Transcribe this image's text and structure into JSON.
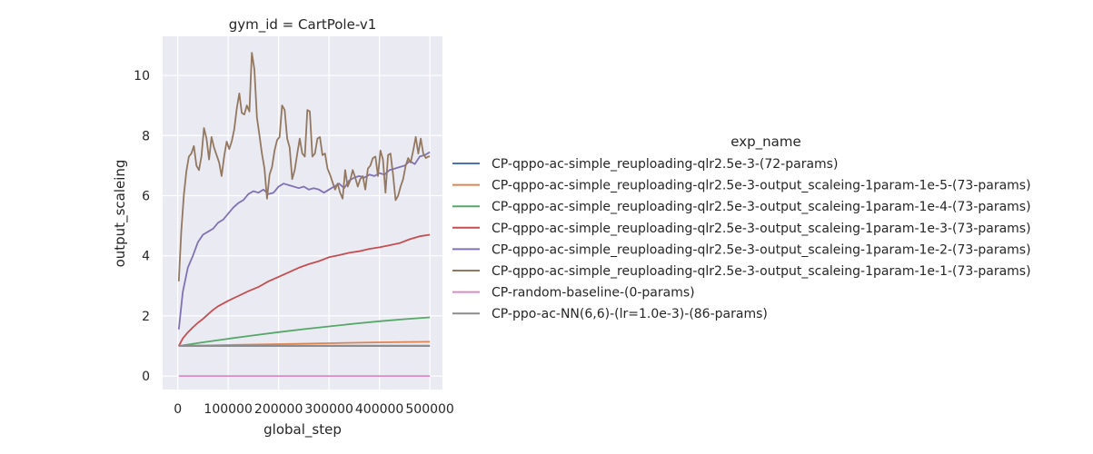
{
  "chart_data": {
    "type": "line",
    "title": "gym_id = CartPole-v1",
    "xlabel": "global_step",
    "ylabel": "output_scaleing",
    "xlim": [
      -30000,
      525000
    ],
    "ylim": [
      -0.45,
      11.3
    ],
    "xticks": [
      0,
      100000,
      200000,
      300000,
      400000,
      500000
    ],
    "xtick_labels": [
      "0",
      "100000",
      "200000",
      "300000",
      "400000",
      "500000"
    ],
    "yticks": [
      0,
      2,
      4,
      6,
      8,
      10
    ],
    "ytick_labels": [
      "0",
      "2",
      "4",
      "6",
      "8",
      "10"
    ],
    "grid": true,
    "legend": {
      "title": "exp_name",
      "placement": "right"
    },
    "series": [
      {
        "name": "CP-qppo-ac-simple_reuploading-qlr2.5e-3-(72-params)",
        "color": "#4c72b0",
        "x": [
          2048,
          500000
        ],
        "y": [
          1.0,
          1.0
        ]
      },
      {
        "name": "CP-qppo-ac-simple_reuploading-qlr2.5e-3-output_scaleing-1param-1e-5-(73-params)",
        "color": "#dd8452",
        "x": [
          2048,
          100000,
          200000,
          300000,
          400000,
          500000
        ],
        "y": [
          1.0,
          1.03,
          1.06,
          1.09,
          1.12,
          1.14
        ]
      },
      {
        "name": "CP-qppo-ac-simple_reuploading-qlr2.5e-3-output_scaleing-1param-1e-4-(73-params)",
        "color": "#55a868",
        "x": [
          2048,
          50000,
          100000,
          150000,
          200000,
          250000,
          300000,
          350000,
          400000,
          450000,
          500000
        ],
        "y": [
          1.0,
          1.12,
          1.24,
          1.35,
          1.46,
          1.56,
          1.65,
          1.74,
          1.82,
          1.89,
          1.95
        ]
      },
      {
        "name": "CP-qppo-ac-simple_reuploading-qlr2.5e-3-output_scaleing-1param-1e-3-(73-params)",
        "color": "#c44e52",
        "x": [
          2048,
          10000,
          20000,
          30000,
          40000,
          50000,
          60000,
          70000,
          80000,
          100000,
          120000,
          140000,
          160000,
          180000,
          200000,
          220000,
          240000,
          260000,
          280000,
          300000,
          320000,
          340000,
          360000,
          380000,
          400000,
          420000,
          440000,
          460000,
          480000,
          500000
        ],
        "y": [
          1.0,
          1.25,
          1.45,
          1.62,
          1.77,
          1.9,
          2.05,
          2.2,
          2.32,
          2.5,
          2.66,
          2.82,
          2.96,
          3.15,
          3.3,
          3.45,
          3.6,
          3.72,
          3.82,
          3.95,
          4.02,
          4.1,
          4.15,
          4.23,
          4.28,
          4.35,
          4.42,
          4.55,
          4.65,
          4.7
        ]
      },
      {
        "name": "CP-qppo-ac-simple_reuploading-qlr2.5e-3-output_scaleing-1param-1e-2-(73-params)",
        "color": "#8172b3",
        "x": [
          2048,
          10000,
          20000,
          30000,
          40000,
          50000,
          60000,
          70000,
          80000,
          90000,
          100000,
          110000,
          120000,
          130000,
          140000,
          150000,
          160000,
          170000,
          180000,
          190000,
          200000,
          210000,
          220000,
          230000,
          240000,
          250000,
          260000,
          270000,
          280000,
          290000,
          300000,
          310000,
          320000,
          330000,
          340000,
          350000,
          360000,
          370000,
          380000,
          390000,
          400000,
          410000,
          420000,
          430000,
          440000,
          450000,
          460000,
          470000,
          480000,
          490000,
          500000
        ],
        "y": [
          1.55,
          2.8,
          3.6,
          4.0,
          4.45,
          4.7,
          4.8,
          4.9,
          5.1,
          5.2,
          5.4,
          5.6,
          5.75,
          5.85,
          6.05,
          6.15,
          6.1,
          6.2,
          6.05,
          6.1,
          6.3,
          6.4,
          6.35,
          6.3,
          6.25,
          6.3,
          6.2,
          6.25,
          6.2,
          6.1,
          6.2,
          6.3,
          6.4,
          6.25,
          6.5,
          6.6,
          6.65,
          6.6,
          6.7,
          6.65,
          6.75,
          6.7,
          6.85,
          6.9,
          6.95,
          7.0,
          7.15,
          7.05,
          7.3,
          7.35,
          7.45
        ]
      },
      {
        "name": "CP-qppo-ac-simple_reuploading-qlr2.5e-3-output_scaleing-1param-1e-1-(73-params)",
        "color": "#937860",
        "x": [
          2048,
          7000,
          12000,
          17000,
          22000,
          27000,
          32000,
          37000,
          42000,
          47000,
          52000,
          57000,
          62000,
          67000,
          72000,
          77000,
          82000,
          87000,
          92000,
          97000,
          102000,
          107000,
          112000,
          117000,
          122000,
          127000,
          132000,
          137000,
          142000,
          147000,
          152000,
          157000,
          162000,
          167000,
          172000,
          177000,
          182000,
          187000,
          192000,
          197000,
          202000,
          207000,
          212000,
          217000,
          222000,
          227000,
          232000,
          237000,
          242000,
          247000,
          252000,
          257000,
          262000,
          267000,
          272000,
          277000,
          282000,
          287000,
          292000,
          297000,
          302000,
          307000,
          312000,
          317000,
          322000,
          327000,
          332000,
          337000,
          342000,
          347000,
          352000,
          357000,
          362000,
          367000,
          372000,
          377000,
          382000,
          387000,
          392000,
          397000,
          402000,
          407000,
          412000,
          417000,
          422000,
          427000,
          432000,
          437000,
          442000,
          447000,
          452000,
          457000,
          462000,
          467000,
          472000,
          477000,
          482000,
          487000,
          492000,
          497000,
          500000
        ],
        "y": [
          3.15,
          4.8,
          6.0,
          6.8,
          7.3,
          7.4,
          7.65,
          7.0,
          6.85,
          7.3,
          8.25,
          7.9,
          7.2,
          7.95,
          7.6,
          7.35,
          7.1,
          6.65,
          7.3,
          7.8,
          7.55,
          7.8,
          8.2,
          8.9,
          9.4,
          8.75,
          8.7,
          9.0,
          8.8,
          10.75,
          10.2,
          8.6,
          8.0,
          7.4,
          6.9,
          5.9,
          6.7,
          6.95,
          7.5,
          7.85,
          7.95,
          9.0,
          8.85,
          7.9,
          7.6,
          6.55,
          6.85,
          7.4,
          7.9,
          7.4,
          7.3,
          8.85,
          8.8,
          7.3,
          7.4,
          7.9,
          7.95,
          7.35,
          7.4,
          6.9,
          6.7,
          6.45,
          6.2,
          6.4,
          6.1,
          5.9,
          6.85,
          6.3,
          6.5,
          6.85,
          6.6,
          6.3,
          6.55,
          6.65,
          6.2,
          6.9,
          7.0,
          7.25,
          7.3,
          6.65,
          7.5,
          7.2,
          6.1,
          7.35,
          7.4,
          6.7,
          5.85,
          6.0,
          6.3,
          6.55,
          7.0,
          7.25,
          7.1,
          7.5,
          7.95,
          7.4,
          7.9,
          7.4,
          7.25,
          7.3,
          7.3
        ]
      },
      {
        "name": "CP-random-baseline-(0-params)",
        "color": "#da8bc3",
        "x": [
          2048,
          500000
        ],
        "y": [
          0.0,
          0.0
        ]
      },
      {
        "name": "CP-ppo-ac-NN(6,6)-(lr=1.0e-3)-(86-params)",
        "color": "#8c8c8c",
        "x": [
          2048,
          500000
        ],
        "y": [
          1.01,
          1.01
        ]
      }
    ]
  }
}
